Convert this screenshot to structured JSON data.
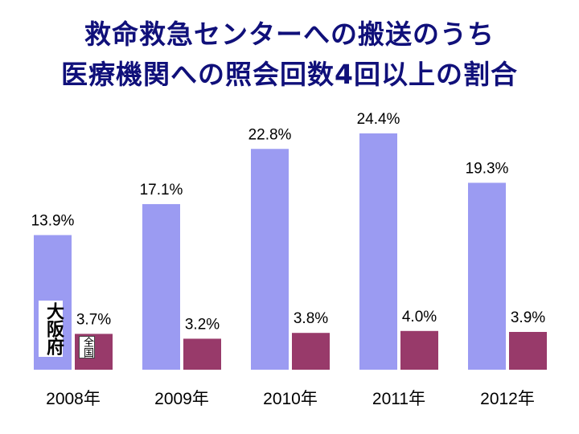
{
  "title_line1": "救命救急センターへの搬送のうち",
  "title_line2": "医療機関への照会回数4回以上の割合",
  "label_osaka": "大阪府",
  "label_national": "全国",
  "colors": {
    "osaka": "#9b9bf2",
    "national": "#983a6a",
    "title": "#10107a"
  },
  "chart_data": {
    "type": "bar",
    "title": "救命救急センターへの搬送のうち 医療機関への照会回数4回以上の割合",
    "categories": [
      "2008年",
      "2009年",
      "2010年",
      "2011年",
      "2012年"
    ],
    "series": [
      {
        "name": "大阪府",
        "values": [
          13.9,
          17.1,
          22.8,
          24.4,
          19.3
        ],
        "labels": [
          "13.9%",
          "17.1%",
          "22.8%",
          "24.4%",
          "19.3%"
        ]
      },
      {
        "name": "全国",
        "values": [
          3.7,
          3.2,
          3.8,
          4.0,
          3.9
        ],
        "labels": [
          "3.7%",
          "3.2%",
          "3.8%",
          "4.0%",
          "3.9%"
        ]
      }
    ],
    "ylim": [
      0,
      25
    ],
    "grid": false,
    "legend": "inline labels on first category"
  }
}
